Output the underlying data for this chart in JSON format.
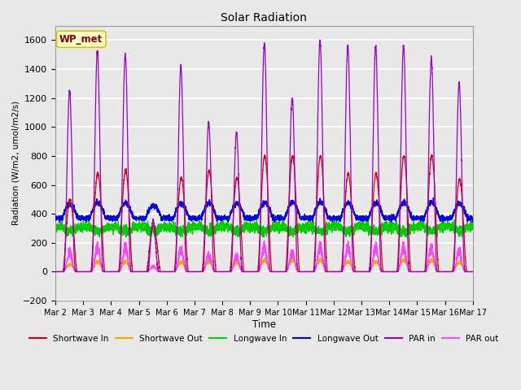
{
  "title": "Solar Radiation",
  "xlabel": "Time",
  "ylabel": "Radiation (W/m2, umol/m2/s)",
  "ylim": [
    -200,
    1700
  ],
  "yticks": [
    -200,
    0,
    200,
    400,
    600,
    800,
    1000,
    1200,
    1400,
    1600
  ],
  "num_days": 15,
  "points_per_day": 288,
  "legend_label": "WP_met",
  "annotation_box_color": "#ffffcc",
  "annotation_text_color": "#880000",
  "annotation_edge_color": "#cccc00",
  "fig_bg": "#e8e8e8",
  "ax_bg": "#e8e8e8",
  "grid_color": "#ffffff",
  "colors": {
    "par_in": "#9900CC",
    "par_out": "#FF44FF",
    "sw_in": "#DD0000",
    "sw_out": "#FFA500",
    "lw_in": "#00CC00",
    "lw_out": "#0000DD"
  },
  "day_peaks_sw": [
    500,
    680,
    700,
    320,
    650,
    700,
    650,
    800,
    800,
    800,
    680,
    680,
    800,
    800,
    640
  ],
  "day_peaks_par": [
    1250,
    1520,
    1500,
    350,
    1420,
    1030,
    960,
    1570,
    1200,
    1600,
    1560,
    1560,
    1560,
    1470,
    1300
  ],
  "lw_out_night": 370,
  "lw_in_base": 310
}
